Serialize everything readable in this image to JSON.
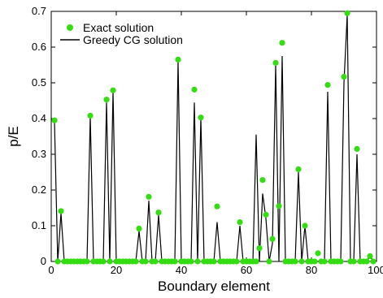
{
  "chart_data": {
    "type": "line",
    "title": "",
    "xlabel": "Boundary element",
    "ylabel": "p/E",
    "xlim": [
      0,
      100
    ],
    "ylim": [
      0,
      0.7
    ],
    "xticks": [
      "0",
      "20",
      "40",
      "60",
      "80",
      "100"
    ],
    "yticks": [
      "0",
      "0.1",
      "0.2",
      "0.3",
      "0.4",
      "0.5",
      "0.6",
      "0.7"
    ],
    "grid": false,
    "legend_placement": "top-left",
    "colors": {
      "exact": "#33dd11",
      "greedy": "#000000"
    },
    "series": [
      {
        "name": "Exact solution",
        "style": "markers",
        "x": [
          1,
          2,
          3,
          4,
          5,
          6,
          7,
          8,
          9,
          10,
          11,
          12,
          13,
          14,
          15,
          16,
          17,
          18,
          19,
          20,
          21,
          22,
          23,
          24,
          25,
          26,
          27,
          28,
          29,
          30,
          31,
          32,
          33,
          34,
          35,
          36,
          37,
          38,
          39,
          40,
          41,
          42,
          43,
          44,
          45,
          46,
          47,
          48,
          49,
          50,
          51,
          52,
          53,
          54,
          55,
          56,
          57,
          58,
          59,
          60,
          61,
          62,
          63,
          64,
          65,
          66,
          67,
          68,
          69,
          70,
          71,
          72,
          73,
          74,
          75,
          76,
          77,
          78,
          79,
          80,
          81,
          82,
          83,
          84,
          85,
          86,
          87,
          88,
          89,
          90,
          91,
          92,
          93,
          94,
          95,
          96,
          97,
          98,
          99
        ],
        "y": [
          0.395,
          0,
          0.141,
          0,
          0,
          0,
          0,
          0,
          0,
          0,
          0,
          0.408,
          0,
          0,
          0,
          0,
          0.453,
          0,
          0.479,
          0,
          0,
          0,
          0,
          0,
          0,
          0,
          0.092,
          0,
          0,
          0.181,
          0,
          0,
          0.137,
          0,
          0,
          0,
          0,
          0,
          0.565,
          0,
          0,
          0,
          0,
          0.481,
          0,
          0.403,
          0,
          0,
          0,
          0,
          0.154,
          0,
          0,
          0,
          0,
          0,
          0,
          0.11,
          0,
          0,
          0,
          0,
          0,
          0.037,
          0.228,
          0.131,
          0,
          0.063,
          0.556,
          0.155,
          0.612,
          0,
          0,
          0,
          0,
          0.258,
          0,
          0.1,
          0,
          0,
          0,
          0.023,
          0,
          0,
          0.494,
          0,
          0,
          0,
          0,
          0.517,
          0.695,
          0,
          0,
          0.315,
          0,
          0,
          0,
          0.015,
          0
        ]
      },
      {
        "name": "Greedy CG solution",
        "style": "line",
        "x": [
          1,
          2,
          3,
          4,
          5,
          6,
          7,
          8,
          9,
          10,
          11,
          12,
          13,
          14,
          15,
          16,
          17,
          18,
          19,
          20,
          21,
          22,
          23,
          24,
          25,
          26,
          27,
          28,
          29,
          30,
          31,
          32,
          33,
          34,
          35,
          36,
          37,
          38,
          39,
          40,
          41,
          42,
          43,
          44,
          45,
          46,
          47,
          48,
          49,
          50,
          51,
          52,
          53,
          54,
          55,
          56,
          57,
          58,
          59,
          60,
          61,
          62,
          63,
          64,
          65,
          66,
          67,
          68,
          69,
          70,
          71,
          72,
          73,
          74,
          75,
          76,
          77,
          78,
          79,
          80,
          81,
          82,
          83,
          84,
          85,
          86,
          87,
          88,
          89,
          90,
          91,
          92,
          93,
          94,
          95,
          96,
          97,
          98,
          99
        ],
        "y": [
          0.39,
          0,
          0.135,
          0,
          0,
          0,
          0,
          0,
          0,
          0,
          0,
          0.405,
          0,
          0,
          0,
          0,
          0.445,
          0,
          0.475,
          0,
          0,
          0,
          0,
          0,
          0,
          0,
          0.085,
          0,
          0,
          0.17,
          0,
          0,
          0.13,
          0,
          0,
          0,
          0,
          0,
          0.56,
          0,
          0,
          0,
          0,
          0.445,
          0,
          0.4,
          0,
          0,
          0,
          0,
          0.11,
          0,
          0,
          0,
          0,
          0,
          0,
          0.1,
          0,
          0,
          0,
          0,
          0.355,
          0,
          0.19,
          0.12,
          0,
          0.05,
          0.55,
          0,
          0.575,
          0,
          0,
          0,
          0,
          0.25,
          0,
          0.1,
          0,
          0,
          0,
          0,
          0,
          0,
          0.475,
          0,
          0,
          0,
          0,
          0.5,
          0.69,
          0,
          0,
          0.3,
          0,
          0,
          0,
          0.015,
          0
        ]
      }
    ]
  }
}
